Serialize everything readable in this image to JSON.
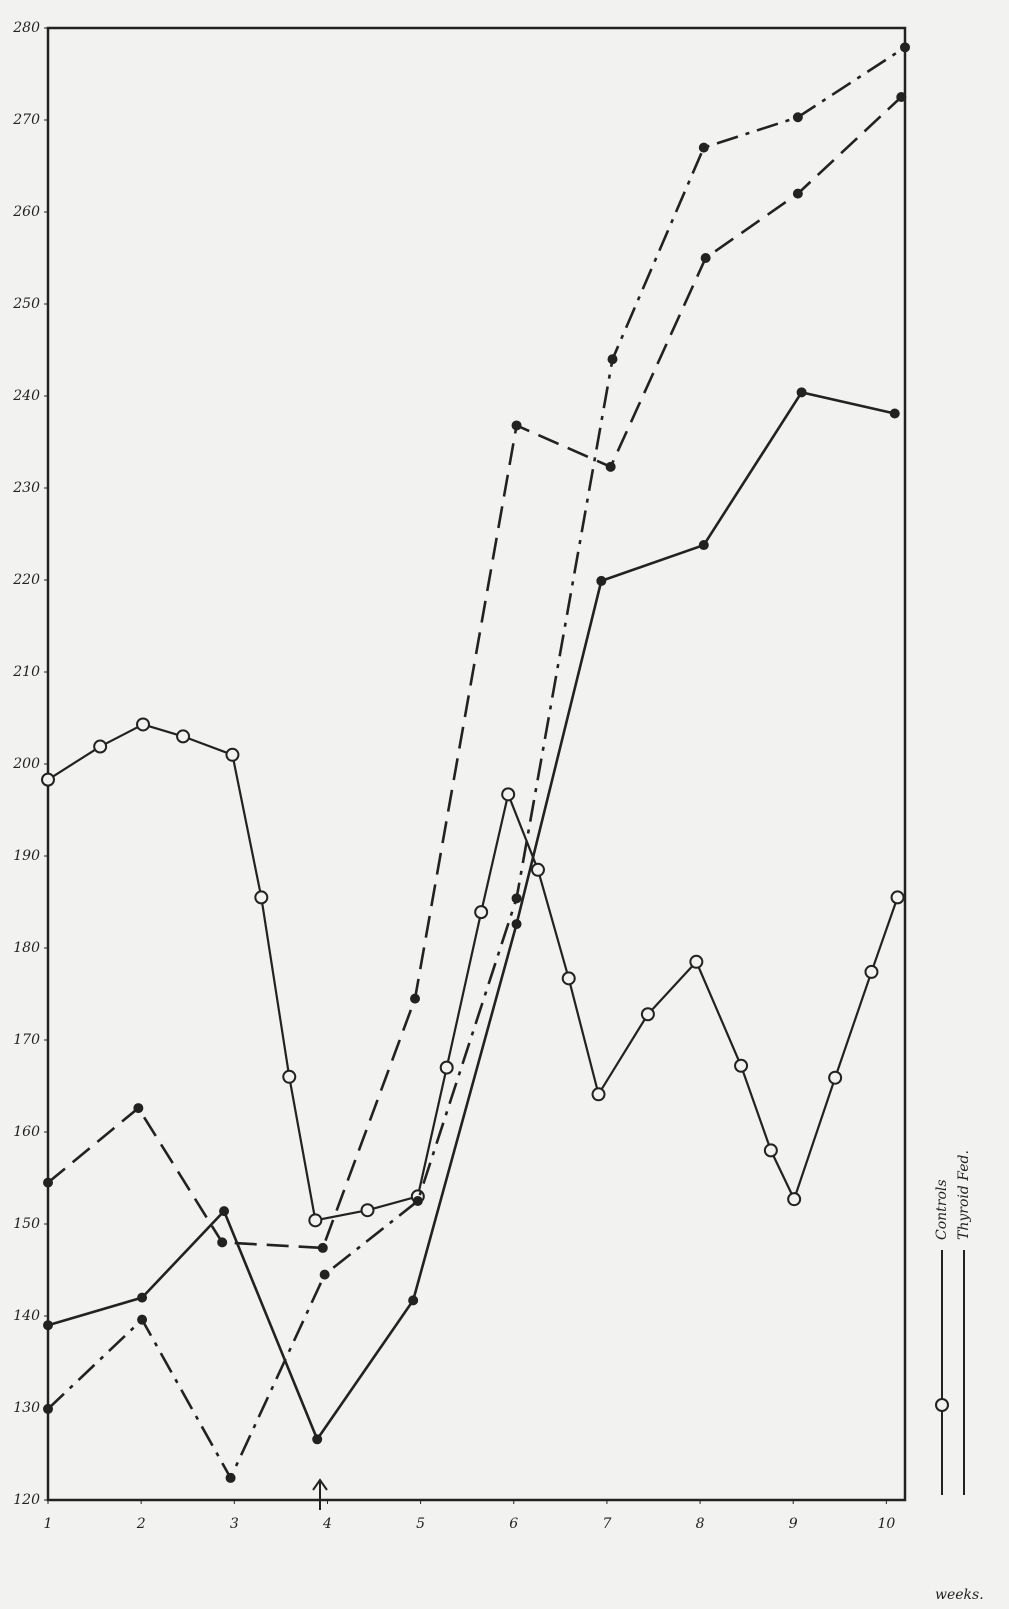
{
  "chart_data": {
    "type": "line",
    "x_label": "weeks.",
    "xlim": [
      1,
      10.2
    ],
    "xticks": [
      1,
      2,
      3,
      4,
      5,
      6,
      7,
      8,
      9,
      10
    ],
    "ylim": [
      120,
      280
    ],
    "yticks": [
      120,
      130,
      140,
      150,
      160,
      170,
      180,
      190,
      200,
      210,
      220,
      230,
      240,
      250,
      260,
      270,
      280
    ],
    "series": [
      {
        "name": "Controls",
        "color": "#222222",
        "style": "solid",
        "marker": "open",
        "x": [
          1,
          1.56,
          2.02,
          2.45,
          2.98,
          3.29,
          3.59,
          3.87,
          4.43,
          4.97,
          5.28,
          5.65,
          5.94,
          6.26,
          6.59,
          6.91,
          7.44,
          7.96,
          8.44,
          8.76,
          9.01,
          9.45,
          9.84,
          10.12
        ],
        "values": [
          198.3,
          201.9,
          204.3,
          203,
          201,
          185.5,
          166,
          150.4,
          151.5,
          153,
          167,
          183.9,
          196.7,
          188.5,
          176.7,
          164.1,
          172.8,
          178.5,
          167.2,
          158,
          152.7,
          165.9,
          177.4,
          185.5
        ]
      },
      {
        "name": "Thyroid Fed.",
        "color": "#222222",
        "style": "solid",
        "marker": "filled",
        "x": [
          1,
          2.01,
          2.89,
          3.89,
          4.92,
          6.03,
          6.94,
          8.04,
          9.09,
          10.09
        ],
        "values": [
          139,
          142,
          151.4,
          126.6,
          141.7,
          182.6,
          219.9,
          223.8,
          240.4,
          238.1
        ]
      },
      {
        "color": "#222222",
        "style": "dashed",
        "marker": "filled",
        "x": [
          1,
          1.97,
          2.87,
          3.95,
          4.94,
          6.03,
          7.04,
          8.06,
          9.05,
          10.16
        ],
        "values": [
          154.5,
          162.6,
          148,
          147.4,
          174.5,
          236.8,
          232.3,
          255,
          262,
          272.5
        ]
      },
      {
        "color": "#222222",
        "style": "dashdot",
        "marker": "filled",
        "x": [
          1,
          2.01,
          2.96,
          3.97,
          4.97,
          6.03,
          7.06,
          8.04,
          9.05,
          10.2
        ],
        "values": [
          129.9,
          139.6,
          122.4,
          144.5,
          152.5,
          185.4,
          244,
          267,
          270.3,
          277.9
        ]
      }
    ]
  }
}
